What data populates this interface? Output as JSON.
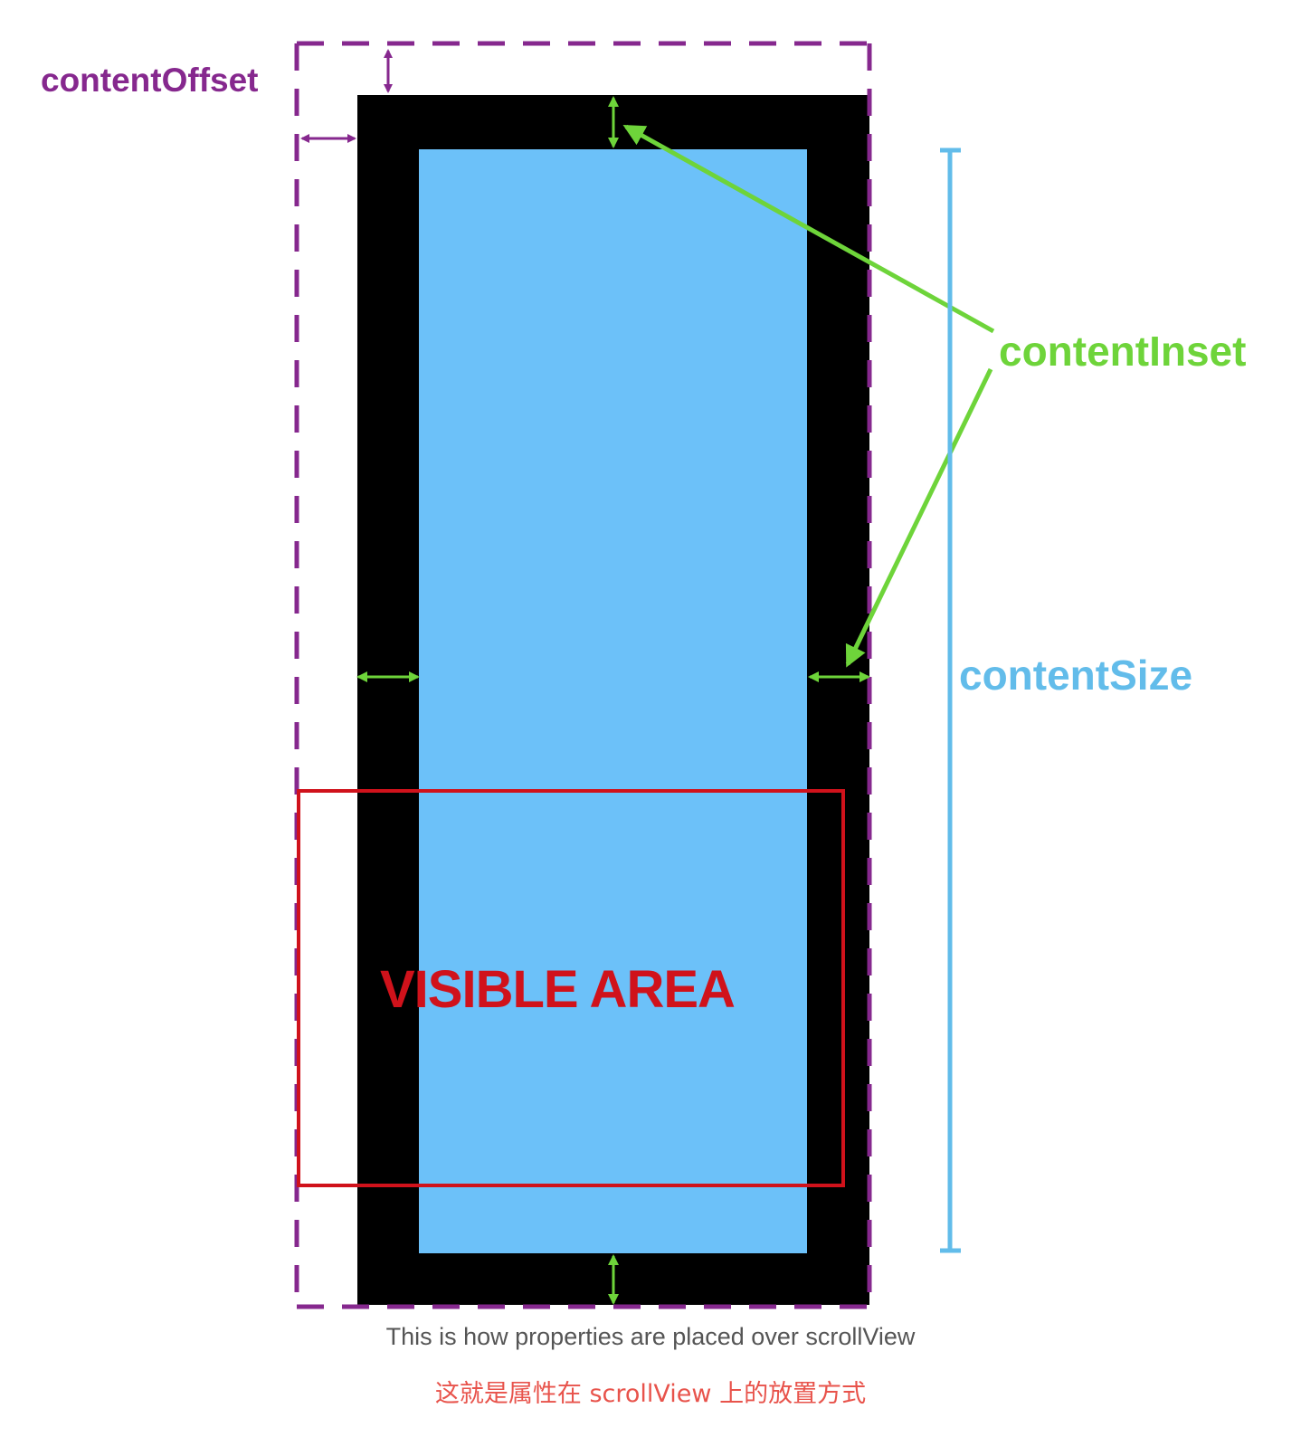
{
  "labels": {
    "content_offset": "contentOffset",
    "content_inset": "contentInset",
    "content_size": "contentSize",
    "visible_area": "VISIBLE AREA"
  },
  "caption": {
    "english": "This is how properties are placed over scrollView",
    "chinese": "这就是属性在 scrollView 上的放置方式"
  },
  "colors": {
    "offset_purple": "#86288e",
    "inset_green": "#6ed43a",
    "size_blue": "#62bcea",
    "content_fill": "#6cc1f9",
    "frame_black": "#000000",
    "visible_red": "#d0121b"
  }
}
